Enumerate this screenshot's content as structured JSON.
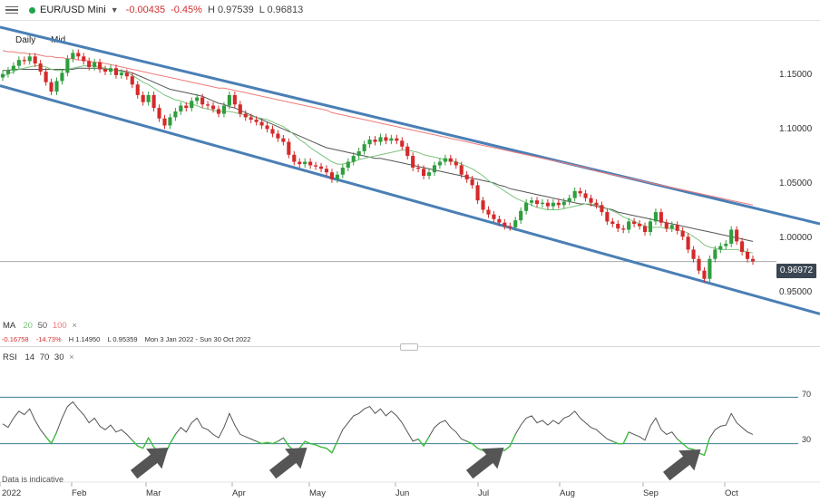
{
  "header": {
    "symbol": "EUR/USD Mini",
    "change": "-0.00435",
    "change_pct": "-0.45%",
    "high": "H 0.97539",
    "low": "L 0.96813",
    "status_color": "#22a34a",
    "down_color": "#d32f2f"
  },
  "sub": {
    "interval": "Daily",
    "price_type": "Mid"
  },
  "price_axis": {
    "labels": [
      "1.15000",
      "1.10000",
      "1.05000",
      "1.00000",
      "0.95000"
    ],
    "current_price": "0.96972"
  },
  "ma_legend": {
    "title": "MA",
    "p1": "20",
    "p2": "50",
    "p3": "100",
    "close": "×"
  },
  "stats": {
    "change": "-0.16758",
    "change_pct": "-14.73%",
    "high": "H 1.14950",
    "low": "L 0.95359",
    "range": "Mon 3 Jan 2022 - Sun 30 Oct 2022"
  },
  "rsi_legend": {
    "title": "RSI",
    "p1": "14",
    "p2": "70",
    "p3": "30",
    "close": "×"
  },
  "rsi_levels": {
    "upper": "70",
    "lower": "30"
  },
  "disclaimer": "Data is indicative",
  "x_axis": [
    "2022",
    "Feb",
    "Mar",
    "Apr",
    "May",
    "Jun",
    "Jul",
    "Aug",
    "Sep",
    "Oct"
  ],
  "colors": {
    "up": "#2e9e3e",
    "down": "#d42a2a",
    "channel": "#4a7fb5",
    "ma20": "#7cc47c",
    "ma50": "#555555",
    "ma100": "#ef7b7b",
    "arrow": "#555555"
  },
  "chart_data": {
    "type": "candlestick",
    "price_range": [
      0.93,
      1.17
    ],
    "closes": [
      1.13,
      1.133,
      1.137,
      1.142,
      1.141,
      1.145,
      1.139,
      1.132,
      1.123,
      1.115,
      1.124,
      1.131,
      1.143,
      1.148,
      1.145,
      1.141,
      1.136,
      1.14,
      1.134,
      1.132,
      1.135,
      1.129,
      1.131,
      1.128,
      1.121,
      1.112,
      1.106,
      1.112,
      1.101,
      1.092,
      1.086,
      1.093,
      1.098,
      1.103,
      1.101,
      1.107,
      1.11,
      1.104,
      1.103,
      1.1,
      1.096,
      1.103,
      1.112,
      1.104,
      1.096,
      1.093,
      1.091,
      1.089,
      1.086,
      1.083,
      1.079,
      1.075,
      1.072,
      1.061,
      1.055,
      1.053,
      1.055,
      1.052,
      1.051,
      1.049,
      1.046,
      1.04,
      1.044,
      1.05,
      1.055,
      1.06,
      1.064,
      1.07,
      1.074,
      1.072,
      1.076,
      1.073,
      1.075,
      1.073,
      1.068,
      1.06,
      1.05,
      1.049,
      1.043,
      1.046,
      1.052,
      1.055,
      1.058,
      1.055,
      1.052,
      1.044,
      1.04,
      1.035,
      1.022,
      1.014,
      1.01,
      1.006,
      1.003,
      1.0,
      0.999,
      1.005,
      1.013,
      1.02,
      1.022,
      1.019,
      1.02,
      1.017,
      1.02,
      1.018,
      1.021,
      1.024,
      1.03,
      1.028,
      1.024,
      1.02,
      1.018,
      1.012,
      1.004,
      1.002,
      0.998,
      0.997,
      1.004,
      1.002,
      1.0,
      0.995,
      1.004,
      1.012,
      1.003,
      0.998,
      1.001,
      0.996,
      0.991,
      0.98,
      0.972,
      0.962,
      0.955,
      0.972,
      0.98,
      0.983,
      0.985,
      0.997,
      0.987,
      0.978,
      0.972,
      0.97
    ],
    "ma20": [
      1.128,
      1.13,
      1.132,
      1.134,
      1.135,
      1.136,
      1.137,
      1.137,
      1.136,
      1.134,
      1.133,
      1.133,
      1.134,
      1.135,
      1.136,
      1.137,
      1.137,
      1.137,
      1.136,
      1.135,
      1.134,
      1.133,
      1.132,
      1.131,
      1.129,
      1.126,
      1.123,
      1.121,
      1.118,
      1.115,
      1.112,
      1.11,
      1.108,
      1.107,
      1.105,
      1.104,
      1.103,
      1.101,
      1.1,
      1.099,
      1.098,
      1.098,
      1.098,
      1.097,
      1.096,
      1.095,
      1.094,
      1.093,
      1.092,
      1.091,
      1.089,
      1.087,
      1.085,
      1.082,
      1.078,
      1.074,
      1.071,
      1.067,
      1.064,
      1.061,
      1.058,
      1.055,
      1.053,
      1.053,
      1.054,
      1.055,
      1.057,
      1.058,
      1.059,
      1.06,
      1.061,
      1.062,
      1.063,
      1.064,
      1.065,
      1.065,
      1.064,
      1.063,
      1.061,
      1.06,
      1.059,
      1.058,
      1.057,
      1.056,
      1.055,
      1.053,
      1.051,
      1.049,
      1.046,
      1.043,
      1.039,
      1.036,
      1.033,
      1.03,
      1.027,
      1.024,
      1.022,
      1.02,
      1.018,
      1.016,
      1.015,
      1.014,
      1.014,
      1.014,
      1.015,
      1.016,
      1.017,
      1.018,
      1.019,
      1.019,
      1.018,
      1.017,
      1.015,
      1.013,
      1.011,
      1.008,
      1.006,
      1.004,
      1.002,
      1.0,
      0.999,
      0.999,
      0.999,
      0.998,
      0.998,
      0.997,
      0.996,
      0.994,
      0.991,
      0.988,
      0.984,
      0.982,
      0.981,
      0.98,
      0.98,
      0.98,
      0.98,
      0.979,
      0.978,
      0.977
    ],
    "ma50": [
      1.133,
      1.133,
      1.134,
      1.134,
      1.134,
      1.134,
      1.134,
      1.134,
      1.134,
      1.134,
      1.134,
      1.134,
      1.134,
      1.134,
      1.135,
      1.135,
      1.135,
      1.135,
      1.135,
      1.134,
      1.134,
      1.133,
      1.133,
      1.132,
      1.131,
      1.129,
      1.127,
      1.125,
      1.123,
      1.121,
      1.119,
      1.117,
      1.116,
      1.115,
      1.114,
      1.113,
      1.112,
      1.111,
      1.109,
      1.107,
      1.105,
      1.104,
      1.102,
      1.101,
      1.099,
      1.097,
      1.095,
      1.093,
      1.091,
      1.089,
      1.087,
      1.085,
      1.083,
      1.081,
      1.079,
      1.077,
      1.075,
      1.073,
      1.071,
      1.069,
      1.067,
      1.066,
      1.065,
      1.064,
      1.063,
      1.062,
      1.061,
      1.06,
      1.059,
      1.058,
      1.058,
      1.057,
      1.056,
      1.055,
      1.054,
      1.053,
      1.052,
      1.051,
      1.05,
      1.049,
      1.048,
      1.047,
      1.046,
      1.045,
      1.044,
      1.043,
      1.042,
      1.041,
      1.04,
      1.039,
      1.038,
      1.037,
      1.035,
      1.034,
      1.032,
      1.031,
      1.03,
      1.029,
      1.028,
      1.027,
      1.026,
      1.025,
      1.024,
      1.023,
      1.022,
      1.021,
      1.02,
      1.019,
      1.019,
      1.018,
      1.017,
      1.016,
      1.015,
      1.014,
      1.012,
      1.011,
      1.01,
      1.009,
      1.008,
      1.007,
      1.006,
      1.005,
      1.004,
      1.003,
      1.002,
      1.001,
      1.0,
      0.999,
      0.998,
      0.997,
      0.996,
      0.995,
      0.994,
      0.993,
      0.992,
      0.991,
      0.99,
      0.989,
      0.988,
      0.987
    ],
    "ma100": [
      1.15,
      1.149,
      1.149,
      1.148,
      1.148,
      1.147,
      1.147,
      1.146,
      1.145,
      1.145,
      1.144,
      1.144,
      1.143,
      1.143,
      1.142,
      1.142,
      1.141,
      1.14,
      1.14,
      1.139,
      1.138,
      1.137,
      1.136,
      1.135,
      1.134,
      1.133,
      1.132,
      1.131,
      1.13,
      1.129,
      1.128,
      1.127,
      1.126,
      1.125,
      1.124,
      1.123,
      1.122,
      1.121,
      1.12,
      1.119,
      1.118,
      1.118,
      1.117,
      1.116,
      1.115,
      1.114,
      1.113,
      1.112,
      1.111,
      1.11,
      1.109,
      1.108,
      1.107,
      1.106,
      1.105,
      1.104,
      1.103,
      1.102,
      1.101,
      1.1,
      1.099,
      1.097,
      1.096,
      1.095,
      1.094,
      1.093,
      1.092,
      1.091,
      1.09,
      1.089,
      1.088,
      1.087,
      1.086,
      1.085,
      1.084,
      1.083,
      1.082,
      1.081,
      1.08,
      1.079,
      1.078,
      1.077,
      1.076,
      1.075,
      1.074,
      1.073,
      1.072,
      1.071,
      1.07,
      1.069,
      1.068,
      1.067,
      1.066,
      1.065,
      1.064,
      1.063,
      1.062,
      1.061,
      1.06,
      1.059,
      1.058,
      1.057,
      1.056,
      1.055,
      1.054,
      1.053,
      1.052,
      1.051,
      1.05,
      1.049,
      1.047,
      1.046,
      1.045,
      1.044,
      1.043,
      1.042,
      1.041,
      1.04,
      1.039,
      1.038,
      1.037,
      1.036,
      1.035,
      1.034,
      1.033,
      1.032,
      1.031,
      1.03,
      1.029,
      1.028,
      1.027,
      1.026,
      1.025,
      1.024,
      1.023,
      1.022,
      1.021,
      1.02,
      1.019,
      1.018
    ],
    "channel_upper": [
      1.17,
      1.002
    ],
    "channel_lower": [
      1.12,
      0.925
    ],
    "rsi_range": [
      0,
      100
    ],
    "rsi": [
      47,
      44,
      52,
      58,
      55,
      60,
      50,
      42,
      36,
      30,
      40,
      52,
      62,
      66,
      60,
      55,
      48,
      52,
      45,
      42,
      46,
      40,
      42,
      38,
      33,
      28,
      26,
      35,
      27,
      22,
      20,
      30,
      38,
      44,
      40,
      48,
      52,
      44,
      42,
      38,
      35,
      44,
      56,
      46,
      38,
      36,
      34,
      32,
      30,
      31,
      30,
      32,
      35,
      28,
      24,
      26,
      32,
      30,
      29,
      27,
      26,
      22,
      32,
      42,
      48,
      54,
      56,
      60,
      62,
      56,
      60,
      54,
      58,
      54,
      48,
      40,
      32,
      34,
      28,
      36,
      44,
      48,
      50,
      44,
      40,
      34,
      32,
      30,
      26,
      24,
      22,
      24,
      25,
      24,
      28,
      38,
      46,
      52,
      54,
      48,
      50,
      46,
      50,
      47,
      52,
      54,
      58,
      52,
      48,
      44,
      42,
      38,
      34,
      32,
      30,
      30,
      40,
      38,
      36,
      33,
      45,
      52,
      42,
      38,
      40,
      34,
      30,
      26,
      25,
      22,
      20,
      35,
      42,
      45,
      46,
      56,
      48,
      44,
      40,
      38
    ]
  }
}
